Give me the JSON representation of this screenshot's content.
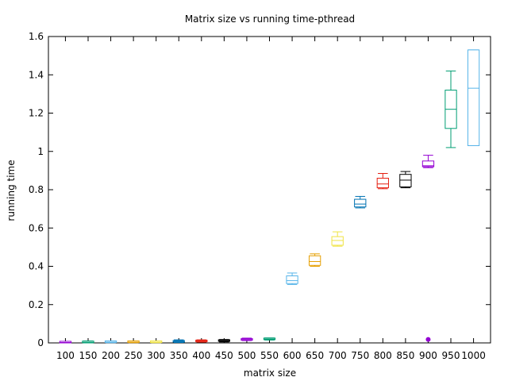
{
  "chart_data": {
    "type": "boxplot",
    "title": "Matrix size vs running time-pthread",
    "xlabel": "matrix size",
    "ylabel": "running time",
    "ylim": [
      0,
      1.6
    ],
    "yticks": [
      0,
      0.2,
      0.4,
      0.6,
      0.8,
      1,
      1.2,
      1.4,
      1.6
    ],
    "ytick_labels": [
      "0",
      "0.2",
      "0.4",
      "0.6",
      "0.8",
      "1",
      "1.2",
      "1.4",
      "1.6"
    ],
    "grid": false,
    "categories": [
      "100",
      "150",
      "200",
      "250",
      "300",
      "350",
      "400",
      "450",
      "500",
      "550",
      "600",
      "650",
      "700",
      "750",
      "800",
      "850",
      "900",
      "950",
      "1000"
    ],
    "boxes": [
      {
        "category": "100",
        "whisker_low": 0.0,
        "q1": 0.0,
        "median": 0.002,
        "q3": 0.004,
        "whisker_high": 0.008,
        "color": "#9400d3",
        "outliers": []
      },
      {
        "category": "150",
        "whisker_low": 0.0,
        "q1": 0.001,
        "median": 0.003,
        "q3": 0.004,
        "whisker_high": 0.01,
        "color": "#009e73",
        "outliers": []
      },
      {
        "category": "200",
        "whisker_low": 0.001,
        "q1": 0.002,
        "median": 0.004,
        "q3": 0.006,
        "whisker_high": 0.01,
        "color": "#56b4e9",
        "outliers": []
      },
      {
        "category": "250",
        "whisker_low": 0.001,
        "q1": 0.002,
        "median": 0.004,
        "q3": 0.006,
        "whisker_high": 0.009,
        "color": "#e69f00",
        "outliers": []
      },
      {
        "category": "300",
        "whisker_low": 0.001,
        "q1": 0.002,
        "median": 0.004,
        "q3": 0.005,
        "whisker_high": 0.008,
        "color": "#f0e442",
        "outliers": []
      },
      {
        "category": "350",
        "whisker_low": 0.002,
        "q1": 0.004,
        "median": 0.008,
        "q3": 0.012,
        "whisker_high": 0.016,
        "color": "#0072b2",
        "outliers": []
      },
      {
        "category": "400",
        "whisker_low": 0.004,
        "q1": 0.006,
        "median": 0.01,
        "q3": 0.012,
        "whisker_high": 0.016,
        "color": "#e51e10",
        "outliers": []
      },
      {
        "category": "450",
        "whisker_low": 0.005,
        "q1": 0.008,
        "median": 0.012,
        "q3": 0.015,
        "whisker_high": 0.018,
        "color": "#000000",
        "outliers": []
      },
      {
        "category": "500",
        "whisker_low": 0.012,
        "q1": 0.014,
        "median": 0.018,
        "q3": 0.022,
        "whisker_high": 0.025,
        "color": "#9400d3",
        "outliers": []
      },
      {
        "category": "550",
        "whisker_low": 0.015,
        "q1": 0.017,
        "median": 0.02,
        "q3": 0.023,
        "whisker_high": 0.026,
        "color": "#009e73",
        "outliers": []
      },
      {
        "category": "600",
        "whisker_low": 0.305,
        "q1": 0.31,
        "median": 0.325,
        "q3": 0.35,
        "whisker_high": 0.365,
        "color": "#56b4e9",
        "outliers": []
      },
      {
        "category": "650",
        "whisker_low": 0.4,
        "q1": 0.405,
        "median": 0.425,
        "q3": 0.455,
        "whisker_high": 0.465,
        "color": "#e69f00",
        "outliers": []
      },
      {
        "category": "700",
        "whisker_low": 0.505,
        "q1": 0.51,
        "median": 0.535,
        "q3": 0.555,
        "whisker_high": 0.58,
        "color": "#f0e442",
        "outliers": []
      },
      {
        "category": "750",
        "whisker_low": 0.705,
        "q1": 0.71,
        "median": 0.725,
        "q3": 0.75,
        "whisker_high": 0.765,
        "color": "#0072b2",
        "outliers": []
      },
      {
        "category": "800",
        "whisker_low": 0.805,
        "q1": 0.81,
        "median": 0.83,
        "q3": 0.86,
        "whisker_high": 0.885,
        "color": "#e51e10",
        "outliers": []
      },
      {
        "category": "850",
        "whisker_low": 0.81,
        "q1": 0.815,
        "median": 0.85,
        "q3": 0.88,
        "whisker_high": 0.895,
        "color": "#000000",
        "outliers": []
      },
      {
        "category": "900",
        "whisker_low": 0.915,
        "q1": 0.92,
        "median": 0.925,
        "q3": 0.95,
        "whisker_high": 0.98,
        "color": "#9400d3",
        "outliers": [
          0.018
        ]
      },
      {
        "category": "950",
        "whisker_low": 1.02,
        "q1": 1.12,
        "median": 1.22,
        "q3": 1.32,
        "whisker_high": 1.42,
        "color": "#009e73",
        "outliers": []
      },
      {
        "category": "1000",
        "whisker_low": 1.03,
        "q1": 1.03,
        "median": 1.33,
        "q3": 1.53,
        "whisker_high": 1.53,
        "color": "#56b4e9",
        "outliers": []
      }
    ]
  }
}
